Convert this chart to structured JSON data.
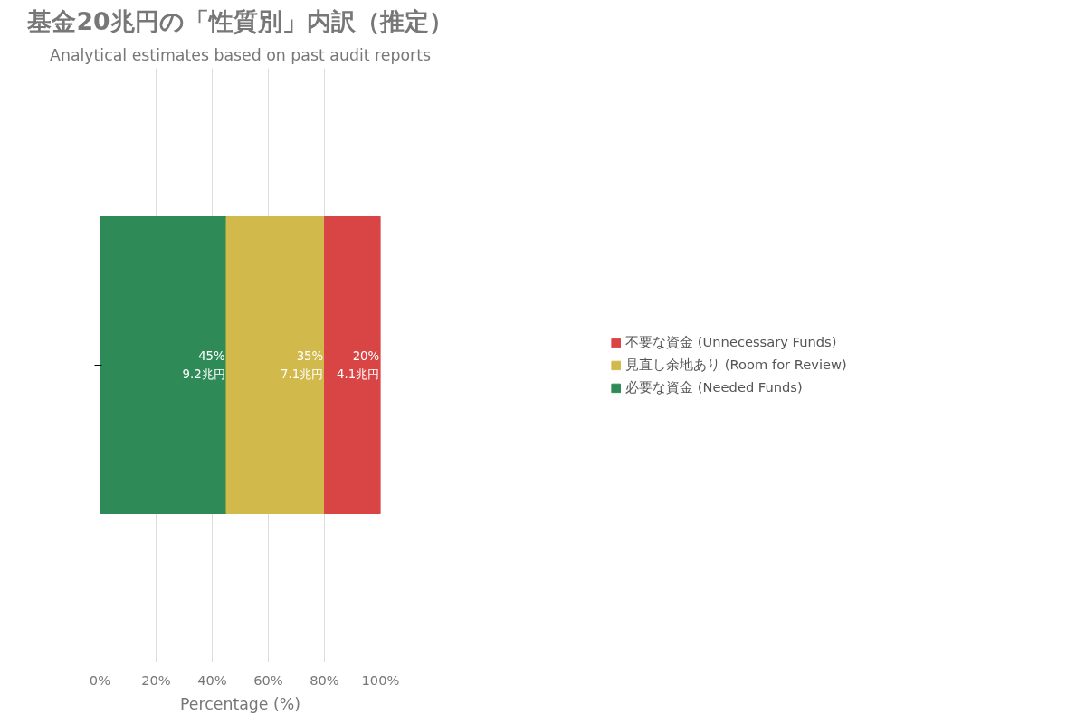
{
  "chart_data": {
    "type": "bar",
    "orientation": "horizontal",
    "stacked": true,
    "title": "基金20兆円の「性質別」内訳（推定）",
    "subtitle": "Analytical estimates based on past audit reports",
    "xlabel": "Percentage (%)",
    "categories": [
      null
    ],
    "series": [
      {
        "name": "必要な資金 (Needed Funds)",
        "color": "#2e8b57",
        "values": [
          45
        ],
        "value_labels": [
          "45%\n9.2兆円"
        ]
      },
      {
        "name": "見直し余地あり (Room for Review)",
        "color": "#d1b94c",
        "values": [
          35
        ],
        "value_labels": [
          "35%\n7.1兆円"
        ]
      },
      {
        "name": "不要な資金 (Unnecessary Funds)",
        "color": "#d94545",
        "values": [
          20
        ],
        "value_labels": [
          "20%\n4.1兆円"
        ]
      }
    ],
    "xlim": [
      0,
      100
    ],
    "xticks": [
      {
        "value": 0,
        "label": "0%"
      },
      {
        "value": 20,
        "label": "20%"
      },
      {
        "value": 40,
        "label": "40%"
      },
      {
        "value": 60,
        "label": "60%"
      },
      {
        "value": 80,
        "label": "80%"
      },
      {
        "value": 100,
        "label": "100%"
      }
    ],
    "grid": "x",
    "legend": "right",
    "tick_labels": "x"
  }
}
